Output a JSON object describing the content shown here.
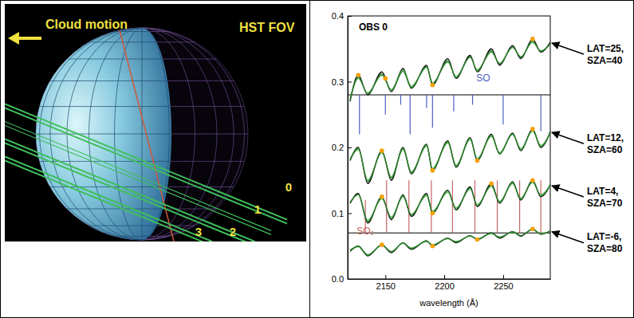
{
  "diagram": {
    "cloud_motion": "Cloud motion",
    "fov_label": "HST FOV",
    "slits": [
      "0",
      "1",
      "2",
      "3"
    ]
  },
  "chart_data": {
    "type": "line",
    "title": "OBS 0",
    "x_label": "wavelength (Å)",
    "x": [
      2120,
      2127,
      2135,
      2147,
      2155,
      2165,
      2172,
      2185,
      2190,
      2203,
      2210,
      2222,
      2228,
      2240,
      2247,
      2258,
      2265,
      2275,
      2282,
      2290
    ],
    "xlim": [
      2118,
      2290
    ],
    "ylim": [
      0,
      0.4
    ],
    "xticks": [
      2150,
      2200,
      2250
    ],
    "yticks": [
      {
        "value": 0,
        "label": "0.0"
      },
      0.1,
      0.2,
      0.3,
      0.4
    ],
    "hlines": [
      0.28,
      0.07
    ],
    "line_lists": [
      {
        "name": "SO",
        "color": "#4a5fc1",
        "label_at": [
          2233,
          0.305
        ],
        "from": 0.28,
        "x": [
          2128,
          2150,
          2163,
          2171,
          2185,
          2190,
          2208,
          2224,
          2250,
          2282
        ],
        "to": [
          0.22,
          0.25,
          0.265,
          0.22,
          0.26,
          0.23,
          0.255,
          0.265,
          0.235,
          0.225
        ]
      },
      {
        "name": "SO₂",
        "color": "#c86464",
        "label_at": [
          2133,
          0.072
        ],
        "from": 0.07,
        "x": [
          2133,
          2151,
          2170,
          2189,
          2207,
          2226,
          2245,
          2264,
          2282
        ],
        "to": [
          0.12,
          0.15,
          0.15,
          0.15,
          0.15,
          0.15,
          0.15,
          0.15,
          0.15
        ]
      }
    ],
    "series": [
      {
        "type": "line",
        "color": "#000000",
        "line_style": "solid",
        "annotation": [
          "LAT=25,",
          "SZA=40"
        ],
        "values": [
          0.27,
          0.31,
          0.28,
          0.315,
          0.285,
          0.32,
          0.29,
          0.325,
          0.295,
          0.335,
          0.305,
          0.34,
          0.315,
          0.35,
          0.325,
          0.355,
          0.335,
          0.365,
          0.345,
          0.36
        ]
      },
      {
        "type": "line",
        "color": "#44aa44",
        "line_style": "solid",
        "values": [
          0.275,
          0.305,
          0.283,
          0.31,
          0.288,
          0.318,
          0.293,
          0.322,
          0.298,
          0.33,
          0.308,
          0.337,
          0.318,
          0.345,
          0.328,
          0.352,
          0.338,
          0.36,
          0.347,
          0.357
        ]
      },
      {
        "type": "line",
        "color": "#2d7a2d",
        "line_style": "solid",
        "values": [
          0.272,
          0.307,
          0.281,
          0.312,
          0.286,
          0.316,
          0.291,
          0.323,
          0.297,
          0.332,
          0.306,
          0.338,
          0.316,
          0.347,
          0.327,
          0.353,
          0.337,
          0.362,
          0.346,
          0.358
        ]
      },
      {
        "type": "line",
        "color": "#000000",
        "line_style": "solid",
        "annotation": [
          "LAT=12,",
          "SZA=60"
        ],
        "values": [
          0.18,
          0.2,
          0.145,
          0.195,
          0.15,
          0.2,
          0.16,
          0.205,
          0.165,
          0.21,
          0.17,
          0.215,
          0.18,
          0.22,
          0.19,
          0.222,
          0.195,
          0.228,
          0.2,
          0.224
        ]
      },
      {
        "type": "line",
        "color": "#44aa44",
        "line_style": "solid",
        "values": [
          0.183,
          0.197,
          0.15,
          0.192,
          0.155,
          0.197,
          0.163,
          0.202,
          0.168,
          0.207,
          0.173,
          0.212,
          0.183,
          0.217,
          0.192,
          0.22,
          0.198,
          0.225,
          0.203,
          0.222
        ]
      },
      {
        "type": "line",
        "color": "#2d7a2d",
        "line_style": "solid",
        "values": [
          0.181,
          0.199,
          0.148,
          0.194,
          0.153,
          0.199,
          0.161,
          0.204,
          0.166,
          0.209,
          0.171,
          0.214,
          0.181,
          0.219,
          0.19,
          0.221,
          0.196,
          0.227,
          0.201,
          0.223
        ]
      },
      {
        "type": "line",
        "color": "#000000",
        "line_style": "solid",
        "annotation": [
          "LAT=4,",
          "SZA=70"
        ],
        "values": [
          0.115,
          0.13,
          0.085,
          0.125,
          0.09,
          0.128,
          0.095,
          0.13,
          0.1,
          0.135,
          0.105,
          0.14,
          0.11,
          0.145,
          0.115,
          0.148,
          0.12,
          0.15,
          0.125,
          0.143
        ]
      },
      {
        "type": "line",
        "color": "#44aa44",
        "line_style": "solid",
        "values": [
          0.117,
          0.128,
          0.089,
          0.122,
          0.094,
          0.125,
          0.098,
          0.127,
          0.103,
          0.132,
          0.108,
          0.137,
          0.113,
          0.141,
          0.118,
          0.145,
          0.123,
          0.147,
          0.128,
          0.142
        ]
      },
      {
        "type": "line",
        "color": "#2d7a2d",
        "line_style": "solid",
        "values": [
          0.116,
          0.129,
          0.087,
          0.124,
          0.092,
          0.127,
          0.097,
          0.129,
          0.101,
          0.134,
          0.106,
          0.139,
          0.111,
          0.143,
          0.116,
          0.147,
          0.121,
          0.149,
          0.126,
          0.144
        ]
      },
      {
        "type": "line",
        "color": "#000000",
        "line_style": "solid",
        "annotation": [
          "LAT=-6,",
          "SZA=80"
        ],
        "values": [
          0.042,
          0.05,
          0.035,
          0.052,
          0.04,
          0.055,
          0.045,
          0.058,
          0.05,
          0.062,
          0.055,
          0.066,
          0.06,
          0.07,
          0.062,
          0.072,
          0.065,
          0.076,
          0.068,
          0.073
        ]
      },
      {
        "type": "line",
        "color": "#44aa44",
        "line_style": "solid",
        "values": [
          0.044,
          0.049,
          0.037,
          0.051,
          0.042,
          0.054,
          0.047,
          0.057,
          0.052,
          0.061,
          0.057,
          0.065,
          0.061,
          0.069,
          0.064,
          0.071,
          0.066,
          0.075,
          0.069,
          0.072
        ]
      },
      {
        "type": "line",
        "color": "#2d7a2d",
        "line_style": "solid",
        "values": [
          0.043,
          0.05,
          0.036,
          0.052,
          0.041,
          0.055,
          0.046,
          0.058,
          0.051,
          0.062,
          0.056,
          0.066,
          0.06,
          0.07,
          0.063,
          0.072,
          0.066,
          0.076,
          0.068,
          0.073
        ]
      },
      {
        "type": "scatter",
        "color": "#f5a000",
        "marker": "circle",
        "x": [
          2127,
          2150,
          2190,
          2275
        ],
        "values": [
          0.31,
          0.305,
          0.295,
          0.365
        ]
      },
      {
        "type": "scatter",
        "color": "#f5a000",
        "marker": "circle",
        "x": [
          2147,
          2190,
          2228,
          2275
        ],
        "values": [
          0.195,
          0.165,
          0.18,
          0.228
        ]
      },
      {
        "type": "scatter",
        "color": "#f5a000",
        "marker": "circle",
        "x": [
          2147,
          2190,
          2240,
          2275
        ],
        "values": [
          0.125,
          0.1,
          0.145,
          0.15
        ]
      },
      {
        "type": "scatter",
        "color": "#f5a000",
        "marker": "circle",
        "x": [
          2147,
          2190,
          2228,
          2275
        ],
        "values": [
          0.052,
          0.05,
          0.06,
          0.076
        ]
      }
    ]
  }
}
